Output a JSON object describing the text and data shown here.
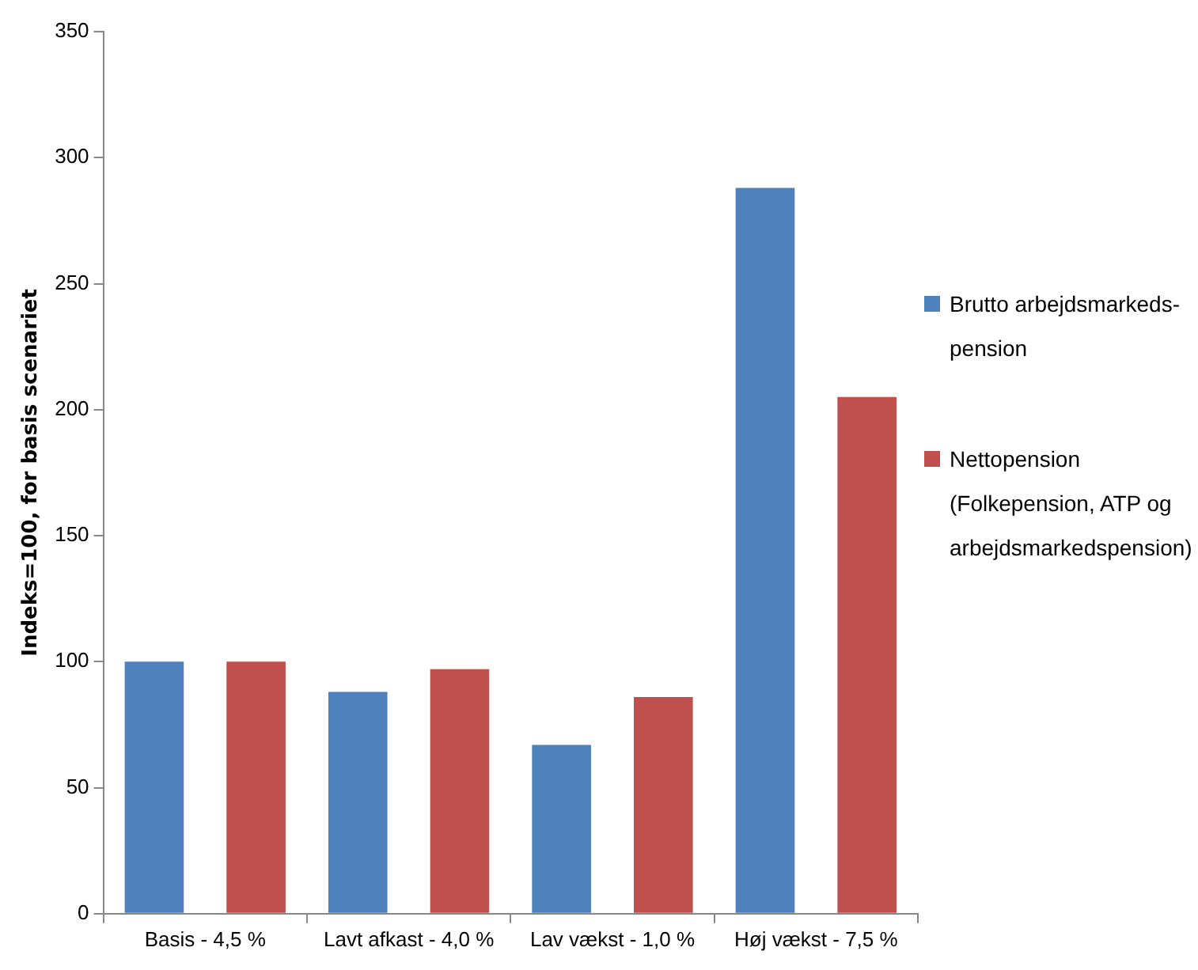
{
  "chart_data": {
    "type": "bar",
    "ylabel": "Indeks=100, for basis scenariet",
    "categories": [
      "Basis - 4,5 %",
      "Lavt afkast - 4,0 %",
      "Lav vækst - 1,0 %",
      "Høj vækst - 7,5 %"
    ],
    "series": [
      {
        "name": "Brutto arbejdsmarkeds-pension",
        "color": "#4f81bd",
        "values": [
          100,
          88,
          67,
          288
        ]
      },
      {
        "name": "Nettopension (Folkepension, ATP og arbejdsmarkedspension)",
        "color": "#c0504d",
        "values": [
          100,
          97,
          86,
          205
        ]
      }
    ],
    "ylim": [
      0,
      350
    ],
    "yticks": [
      0,
      50,
      100,
      150,
      200,
      250,
      300,
      350
    ],
    "legend": "right"
  }
}
